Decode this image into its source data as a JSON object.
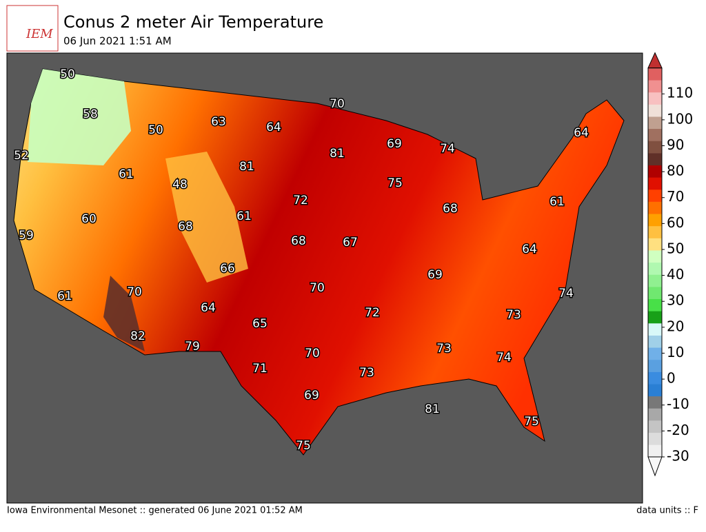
{
  "header": {
    "title": "Conus 2 meter Air Temperature",
    "subtitle": "06 Jun 2021 1:51 AM",
    "logo": "IEM"
  },
  "footer": {
    "left": "Iowa Environmental Mesonet :: generated 06 June 2021 01:52 AM",
    "right": "data units :: F"
  },
  "stations": {
    "values": [
      50,
      58,
      52,
      50,
      63,
      64,
      70,
      81,
      69,
      74,
      64,
      61,
      81,
      48,
      75,
      72,
      61,
      60,
      68,
      61,
      68,
      59,
      68,
      67,
      64,
      66,
      69,
      70,
      61,
      70,
      74,
      64,
      72,
      73,
      65,
      82,
      79,
      73,
      70,
      74,
      71,
      73,
      69,
      81,
      75,
      75
    ]
  },
  "colorbar": {
    "lim": [
      -30,
      120
    ],
    "ticks": [
      -30,
      -20,
      -10,
      0,
      10,
      20,
      30,
      40,
      50,
      60,
      70,
      80,
      90,
      100,
      110
    ],
    "colors": [
      "#f0f0f0",
      "#dcdcdc",
      "#c4c4c4",
      "#a8a8a8",
      "#787878",
      "#2a7fd4",
      "#3a8ce0",
      "#5aa0e0",
      "#70b0e8",
      "#a0d0e8",
      "#d8f8f8",
      "#18a018",
      "#48e048",
      "#70e870",
      "#90f090",
      "#b0f8b0",
      "#d0ffc0",
      "#ffe080",
      "#ffc040",
      "#ffa000",
      "#ff7000",
      "#ff4000",
      "#e01000",
      "#b00000",
      "#603028",
      "#805040",
      "#a07060",
      "#c0a090",
      "#f0e0d8",
      "#f8c0c0",
      "#f09090",
      "#e06060"
    ],
    "under": "#f8f8f8",
    "over": "#c03030"
  }
}
